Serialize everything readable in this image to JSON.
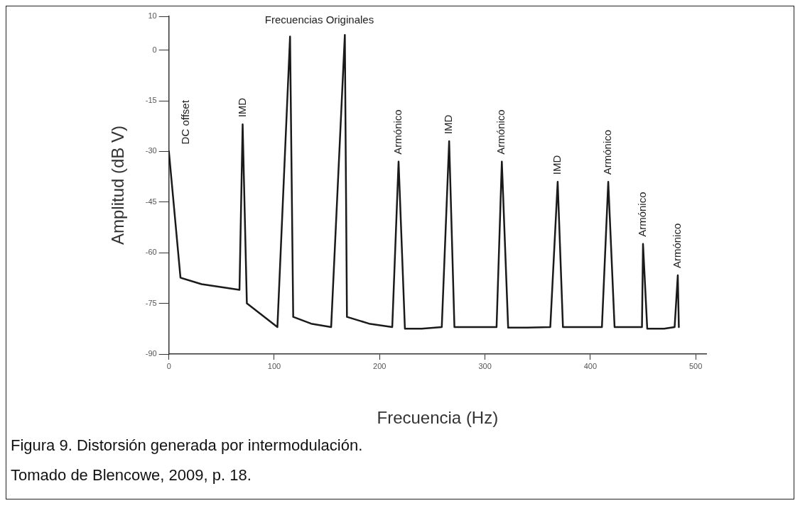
{
  "chart_data": {
    "type": "line",
    "xlabel": "Frecuencia (Hz)",
    "ylabel": "Amplitud (dB V)",
    "series": [
      {
        "color": "#1a1a1a",
        "x": [
          0,
          11,
          31,
          67,
          70,
          74,
          103,
          115,
          118,
          135,
          154,
          167,
          169,
          190,
          212,
          218,
          224,
          240,
          259,
          266,
          271,
          290,
          311,
          316,
          322,
          340,
          362,
          369,
          374,
          390,
          411,
          417,
          423,
          435,
          449,
          450,
          454,
          470,
          480,
          483,
          484
        ],
        "values": [
          -30,
          -67.4,
          -69.3,
          -71,
          -22,
          -75,
          -82,
          4,
          -79,
          -81,
          -82,
          4.5,
          -79,
          -81,
          -82,
          -33,
          -82.5,
          -82.5,
          -82,
          -27,
          -82,
          -82,
          -82,
          -33,
          -82.2,
          -82.2,
          -82,
          -39,
          -82,
          -82,
          -82,
          -39,
          -82,
          -82,
          -82,
          -57.4,
          -82.5,
          -82.5,
          -82,
          -66.7,
          -82
        ]
      }
    ],
    "xlim": [
      0,
      510
    ],
    "ylim": [
      -90,
      10
    ],
    "xticks": [
      0,
      100,
      200,
      300,
      400,
      500
    ],
    "yticks": [
      10,
      0,
      -15,
      -30,
      -45,
      -60,
      -75,
      -90
    ],
    "grid": false,
    "legend": false,
    "marker": "none",
    "line_style": "solid",
    "annotations": [
      "Frecuencias Originales",
      {
        "text": "DC offset",
        "x": 0,
        "y": -30
      },
      {
        "text": "IMD",
        "x": 70,
        "y": -22
      },
      {
        "text": "Armónico",
        "x": 218,
        "y": -33
      },
      {
        "text": "IMD",
        "x": 266,
        "y": -27
      },
      {
        "text": "Armónico",
        "x": 316,
        "y": -33
      },
      {
        "text": "IMD",
        "x": 369,
        "y": -39
      },
      {
        "text": "Armónico",
        "x": 417,
        "y": -39
      },
      {
        "text": "Armónico",
        "x": 450,
        "y": -57.4
      },
      {
        "text": "Armónico",
        "x": 483,
        "y": -66.7
      },
      "Figura 9. Distorsión generada por intermodulación.",
      "Tomado de Blencowe, 2009, p. 18."
    ]
  }
}
